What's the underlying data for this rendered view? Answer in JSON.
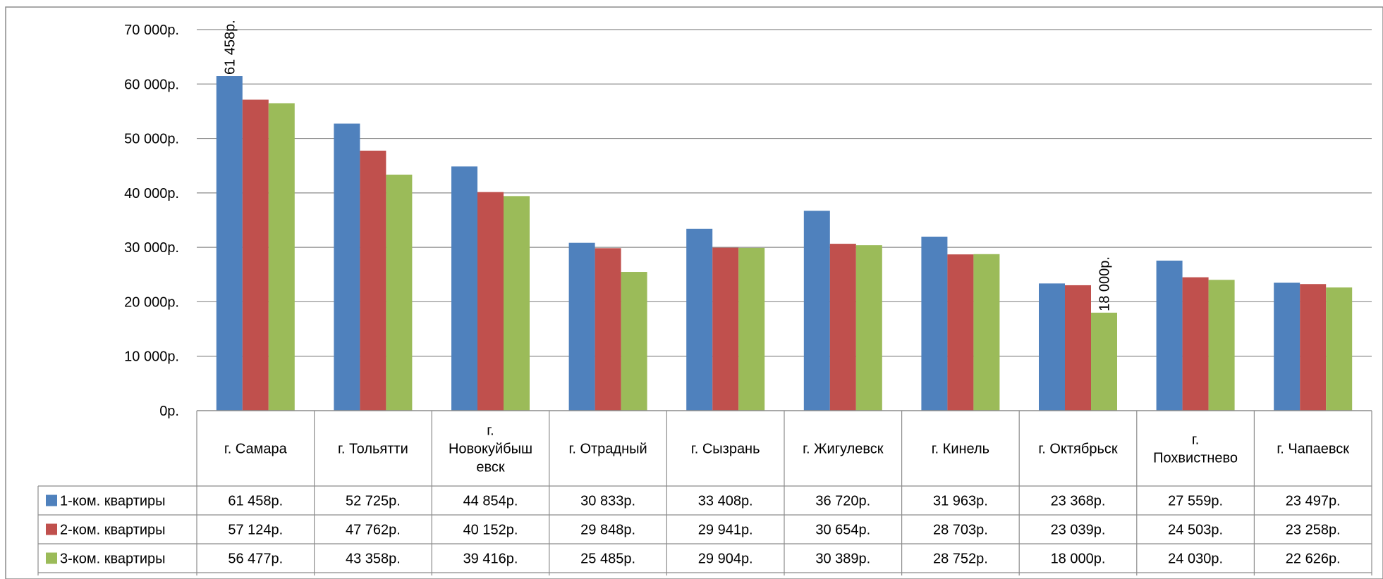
{
  "chart_data": {
    "type": "bar",
    "categories": [
      [
        "г. Самара"
      ],
      [
        "г. Тольятти"
      ],
      [
        "г.",
        "Новокуйбыш",
        "евск"
      ],
      [
        "г. Отрадный"
      ],
      [
        "г. Сызрань"
      ],
      [
        "г. Жигулевск"
      ],
      [
        "г. Кинель"
      ],
      [
        "г. Октябрьск"
      ],
      [
        "г.",
        "Похвистнево"
      ],
      [
        "г. Чапаевск"
      ]
    ],
    "series": [
      {
        "name": "1-ком. квартиры",
        "color": "#4F81BD",
        "values": [
          61458,
          52725,
          44854,
          30833,
          33408,
          36720,
          31963,
          23368,
          27559,
          23497
        ],
        "display": [
          "61 458р.",
          "52 725р.",
          "44 854р.",
          "30 833р.",
          "33 408р.",
          "36 720р.",
          "31 963р.",
          "23 368р.",
          "27 559р.",
          "23 497р."
        ]
      },
      {
        "name": "2-ком. квартиры",
        "color": "#C0504D",
        "values": [
          57124,
          47762,
          40152,
          29848,
          29941,
          30654,
          28703,
          23039,
          24503,
          23258
        ],
        "display": [
          "57 124р.",
          "47 762р.",
          "40 152р.",
          "29 848р.",
          "29 941р.",
          "30 654р.",
          "28 703р.",
          "23 039р.",
          "24 503р.",
          "23 258р."
        ]
      },
      {
        "name": "3-ком. квартиры",
        "color": "#9BBB59",
        "values": [
          56477,
          43358,
          39416,
          25485,
          29904,
          30389,
          28752,
          18000,
          24030,
          22626
        ],
        "display": [
          "56 477р.",
          "43 358р.",
          "39 416р.",
          "25 485р.",
          "29 904р.",
          "30 389р.",
          "28 752р.",
          "18 000р.",
          "24 030р.",
          "22 626р."
        ]
      }
    ],
    "ylim": [
      0,
      70000
    ],
    "y_ticks": [
      {
        "value": 0,
        "label": "0р."
      },
      {
        "value": 10000,
        "label": "10 000р."
      },
      {
        "value": 20000,
        "label": "20 000р."
      },
      {
        "value": 30000,
        "label": "30 000р."
      },
      {
        "value": 40000,
        "label": "40 000р."
      },
      {
        "value": 50000,
        "label": "50 000р."
      },
      {
        "value": 60000,
        "label": "60 000р."
      },
      {
        "value": 70000,
        "label": "70 000р."
      }
    ],
    "annotations": [
      {
        "series": 0,
        "category": 0,
        "label": "61 458р."
      },
      {
        "series": 2,
        "category": 7,
        "label": "18 000р."
      }
    ],
    "grid": true,
    "legend": "data-table-left"
  }
}
